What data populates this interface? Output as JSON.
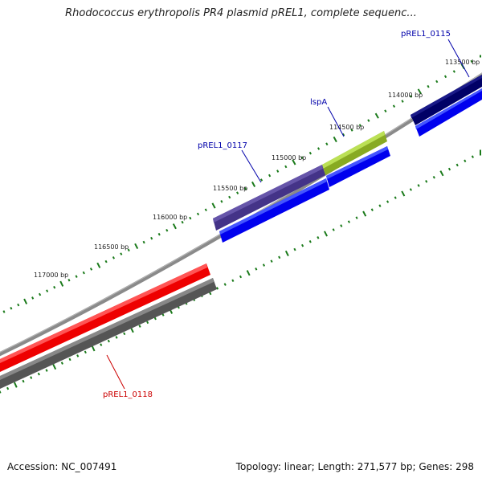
{
  "title": "Rhodococcus erythropolis PR4 plasmid pREL1, complete sequenc...",
  "footer": {
    "accession": "Accession: NC_007491",
    "summary": "Topology: linear; Length: 271,577 bp; Genes: 298"
  },
  "ticks": [
    {
      "label": "113500 bp"
    },
    {
      "label": "114000 bp"
    },
    {
      "label": "114500 bp"
    },
    {
      "label": "115000 bp"
    },
    {
      "label": "115500 bp"
    },
    {
      "label": "116000 bp"
    },
    {
      "label": "116500 bp"
    },
    {
      "label": "117000 bp"
    }
  ],
  "genes": [
    {
      "name": "pREL1_0115",
      "color": "#0000aa"
    },
    {
      "name": "lspA",
      "color": "#0000aa"
    },
    {
      "name": "pREL1_0117",
      "color": "#0000aa"
    },
    {
      "name": "pREL1_0118",
      "color": "#cc0000"
    }
  ],
  "colors": {
    "tick": "#1a7a1a",
    "backbone": "#888888",
    "cds": "#0000ee",
    "gene_dark": "#000066",
    "gene_olive": "#88bb22",
    "gene_slate": "#443388",
    "gene_red": "#ee0000",
    "gene_gray": "#555555"
  }
}
